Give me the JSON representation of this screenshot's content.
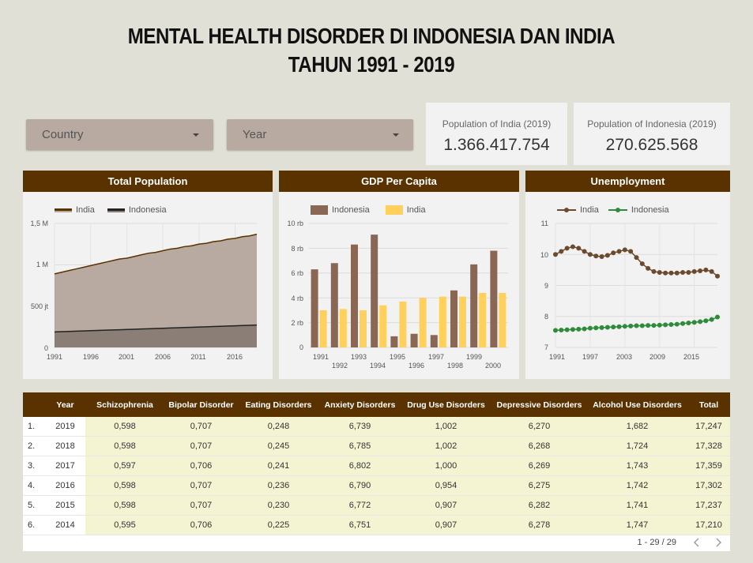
{
  "header": {
    "line1": "MENTAL HEALTH DISORDER DI INDONESIA DAN INDIA",
    "line2": "TAHUN 1991 - 2019"
  },
  "filters": {
    "country": "Country",
    "year": "Year"
  },
  "scorecards": [
    {
      "label": "Population of India (2019)",
      "value": "1.366.417.754"
    },
    {
      "label": "Population of Indonesia (2019)",
      "value": "270.625.568"
    }
  ],
  "charts": {
    "population": {
      "title": "Total Population",
      "legend": [
        "India",
        "Indonesia"
      ],
      "yticks": [
        "0",
        "500 jt",
        "1 M",
        "1,5 M"
      ],
      "xticks": [
        "1991",
        "1996",
        "2001",
        "2006",
        "2011",
        "2016"
      ]
    },
    "gdp": {
      "title": "GDP Per Capita",
      "legend": [
        "Indonesia",
        "India"
      ],
      "yticks": [
        "0",
        "2 rb",
        "4 rb",
        "6 rb",
        "8 rb",
        "10 rb"
      ],
      "xticks_top": [
        "1991",
        "1993",
        "1995",
        "1997",
        "1999"
      ],
      "xticks_bottom": [
        "1992",
        "1994",
        "1996",
        "1998",
        "2000"
      ]
    },
    "unemployment": {
      "title": "Unemployment",
      "legend": [
        "India",
        "Indonesia"
      ],
      "yticks": [
        "7",
        "8",
        "9",
        "10",
        "11"
      ],
      "xticks": [
        "1991",
        "1997",
        "2003",
        "2009",
        "2015"
      ]
    }
  },
  "chart_data": [
    {
      "type": "area",
      "title": "Total Population",
      "x": [
        1991,
        1992,
        1993,
        1994,
        1995,
        1996,
        1997,
        1998,
        1999,
        2000,
        2001,
        2002,
        2003,
        2004,
        2005,
        2006,
        2007,
        2008,
        2009,
        2010,
        2011,
        2012,
        2013,
        2014,
        2015,
        2016,
        2017,
        2018,
        2019
      ],
      "series": [
        {
          "name": "India",
          "color": "#5a3200",
          "fill": "#b8aaa0",
          "values": [
            0.89,
            0.91,
            0.93,
            0.95,
            0.97,
            0.99,
            1.01,
            1.03,
            1.05,
            1.07,
            1.08,
            1.1,
            1.12,
            1.14,
            1.15,
            1.17,
            1.19,
            1.2,
            1.22,
            1.23,
            1.25,
            1.26,
            1.28,
            1.29,
            1.31,
            1.32,
            1.34,
            1.35,
            1.37
          ]
        },
        {
          "name": "Indonesia",
          "color": "#222222",
          "fill": "#8a7e76",
          "values": [
            0.187,
            0.191,
            0.194,
            0.197,
            0.2,
            0.203,
            0.206,
            0.209,
            0.211,
            0.214,
            0.217,
            0.22,
            0.223,
            0.226,
            0.229,
            0.232,
            0.235,
            0.238,
            0.241,
            0.244,
            0.247,
            0.25,
            0.253,
            0.256,
            0.259,
            0.262,
            0.265,
            0.268,
            0.271
          ]
        }
      ],
      "ylim": [
        0,
        1.5
      ],
      "units": "billion"
    },
    {
      "type": "bar",
      "title": "GDP Per Capita",
      "categories": [
        "1991",
        "1992",
        "1993",
        "1994",
        "1995",
        "1996",
        "1997",
        "1998",
        "1999",
        "2000"
      ],
      "series": [
        {
          "name": "Indonesia",
          "color": "#8a6655",
          "values": [
            6.3,
            6.8,
            8.3,
            9.1,
            0.9,
            1.1,
            1.0,
            4.6,
            6.7,
            7.8
          ]
        },
        {
          "name": "India",
          "color": "#ffd15c",
          "values": [
            3.0,
            3.1,
            3.0,
            3.4,
            3.7,
            4.0,
            4.1,
            4.1,
            4.4,
            4.4
          ]
        }
      ],
      "ylim": [
        0,
        10
      ],
      "units": "thousand"
    },
    {
      "type": "line",
      "title": "Unemployment",
      "x": [
        1991,
        1992,
        1993,
        1994,
        1995,
        1996,
        1997,
        1998,
        1999,
        2000,
        2001,
        2002,
        2003,
        2004,
        2005,
        2006,
        2007,
        2008,
        2009,
        2010,
        2011,
        2012,
        2013,
        2014,
        2015,
        2016,
        2017,
        2018,
        2019
      ],
      "series": [
        {
          "name": "India",
          "color": "#6b4a2e",
          "values": [
            10.0,
            10.1,
            10.2,
            10.25,
            10.2,
            10.1,
            10.0,
            9.95,
            9.93,
            9.97,
            10.05,
            10.1,
            10.15,
            10.1,
            9.9,
            9.7,
            9.55,
            9.45,
            9.42,
            9.4,
            9.4,
            9.4,
            9.42,
            9.42,
            9.45,
            9.47,
            9.5,
            9.45,
            9.3
          ]
        },
        {
          "name": "Indonesia",
          "color": "#2e8b3a",
          "values": [
            7.55,
            7.56,
            7.57,
            7.58,
            7.59,
            7.6,
            7.62,
            7.63,
            7.64,
            7.65,
            7.66,
            7.67,
            7.68,
            7.69,
            7.7,
            7.7,
            7.71,
            7.71,
            7.72,
            7.73,
            7.74,
            7.75,
            7.77,
            7.79,
            7.81,
            7.83,
            7.86,
            7.9,
            7.98
          ]
        }
      ],
      "ylim": [
        7,
        11
      ]
    }
  ],
  "table": {
    "headers": [
      "Year",
      "Schizophrenia",
      "Bipolar Disorder",
      "Eating Disorders",
      "Anxiety Disorders",
      "Drug Use Disorders",
      "Depressive Disorders",
      "Alcohol Use Disorders",
      "Total"
    ],
    "rows": [
      [
        "1.",
        "2019",
        "0,598",
        "0,707",
        "0,248",
        "6,739",
        "1,002",
        "6,270",
        "1,682",
        "17,247"
      ],
      [
        "2.",
        "2018",
        "0,598",
        "0,707",
        "0,245",
        "6,785",
        "1,002",
        "6,268",
        "1,724",
        "17,328"
      ],
      [
        "3.",
        "2017",
        "0,597",
        "0,706",
        "0,241",
        "6,802",
        "1,000",
        "6,269",
        "1,743",
        "17,359"
      ],
      [
        "4.",
        "2016",
        "0,598",
        "0,707",
        "0,236",
        "6,790",
        "0,954",
        "6,275",
        "1,742",
        "17,302"
      ],
      [
        "5.",
        "2015",
        "0,598",
        "0,707",
        "0,230",
        "6,772",
        "0,907",
        "6,282",
        "1,741",
        "17,237"
      ],
      [
        "6.",
        "2014",
        "0,595",
        "0,706",
        "0,225",
        "6,751",
        "0,907",
        "6,278",
        "1,747",
        "17,210"
      ]
    ],
    "pager": "1 - 29 / 29"
  }
}
